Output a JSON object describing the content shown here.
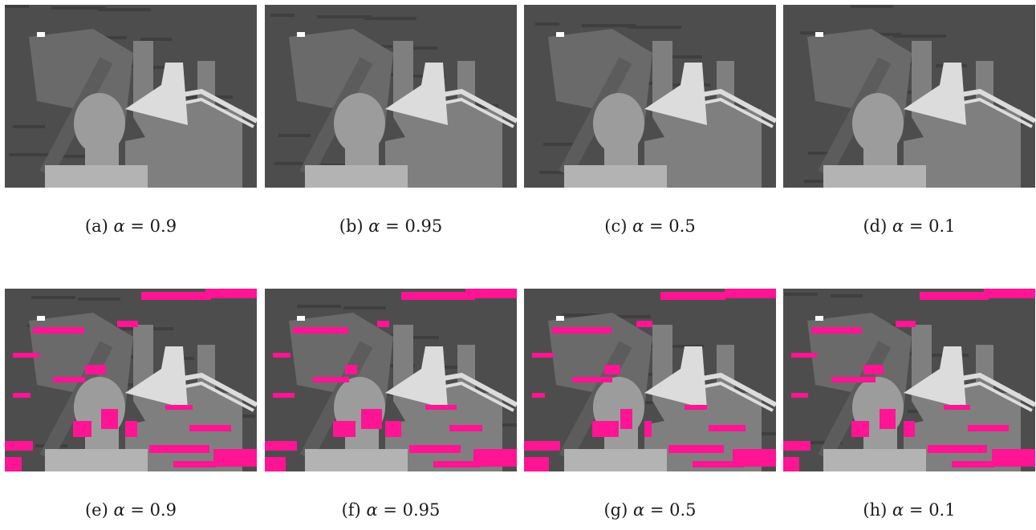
{
  "figures": [
    {
      "letter": "(a)",
      "alpha": "0.9",
      "row": 0,
      "col": 0,
      "overlay": false
    },
    {
      "letter": "(b)",
      "alpha": "0.95",
      "row": 0,
      "col": 1,
      "overlay": false
    },
    {
      "letter": "(c)",
      "alpha": "0.5",
      "row": 0,
      "col": 2,
      "overlay": false
    },
    {
      "letter": "(d)",
      "alpha": "0.1",
      "row": 0,
      "col": 3,
      "overlay": false
    },
    {
      "letter": "(e)",
      "alpha": "0.9",
      "row": 1,
      "col": 0,
      "overlay": true
    },
    {
      "letter": "(f)",
      "alpha": "0.95",
      "row": 1,
      "col": 1,
      "overlay": true
    },
    {
      "letter": "(g)",
      "alpha": "0.5",
      "row": 1,
      "col": 2,
      "overlay": true
    },
    {
      "letter": "(h)",
      "alpha": "0.1",
      "row": 1,
      "col": 3,
      "overlay": true
    }
  ],
  "symbol": "α",
  "equals": "=",
  "colors": {
    "background": "#4d4d4d",
    "mid": "#6a6a6a",
    "body": "#7f7f7f",
    "head": "#9c9c9c",
    "torso": "#b3b3b3",
    "lamp": "#dcdcdc",
    "error": "#ff1493"
  }
}
